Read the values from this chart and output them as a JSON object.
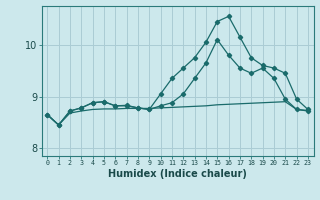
{
  "xlabel": "Humidex (Indice chaleur)",
  "bg_color": "#cce8ec",
  "grid_color": "#aaccd4",
  "line_color": "#1a6b6b",
  "xlim": [
    -0.5,
    23.5
  ],
  "ylim": [
    7.85,
    10.75
  ],
  "xticks": [
    0,
    1,
    2,
    3,
    4,
    5,
    6,
    7,
    8,
    9,
    10,
    11,
    12,
    13,
    14,
    15,
    16,
    17,
    18,
    19,
    20,
    21,
    22,
    23
  ],
  "yticks": [
    8,
    9,
    10
  ],
  "line1_x": [
    0,
    1,
    2,
    3,
    4,
    5,
    6,
    7,
    8,
    9,
    10,
    11,
    12,
    13,
    14,
    15,
    16,
    17,
    18,
    19,
    20,
    21,
    22,
    23
  ],
  "line1_y": [
    8.65,
    8.45,
    8.72,
    8.78,
    8.88,
    8.9,
    8.82,
    8.83,
    8.78,
    8.75,
    9.05,
    9.35,
    9.55,
    9.75,
    10.05,
    10.45,
    10.55,
    10.15,
    9.75,
    9.6,
    9.55,
    9.45,
    8.95,
    8.75
  ],
  "line2_x": [
    0,
    1,
    2,
    3,
    4,
    5,
    6,
    7,
    8,
    9,
    10,
    11,
    12,
    13,
    14,
    15,
    16,
    17,
    18,
    19,
    20,
    21,
    22,
    23
  ],
  "line2_y": [
    8.65,
    8.45,
    8.68,
    8.72,
    8.75,
    8.76,
    8.76,
    8.77,
    8.77,
    8.77,
    8.78,
    8.79,
    8.8,
    8.81,
    8.82,
    8.84,
    8.85,
    8.86,
    8.87,
    8.88,
    8.89,
    8.9,
    8.75,
    8.73
  ],
  "line3_x": [
    0,
    1,
    2,
    3,
    4,
    5,
    6,
    7,
    8,
    9,
    10,
    11,
    12,
    13,
    14,
    15,
    16,
    17,
    18,
    19,
    20,
    21,
    22,
    23
  ],
  "line3_y": [
    8.65,
    8.45,
    8.72,
    8.78,
    8.88,
    8.9,
    8.82,
    8.82,
    8.78,
    8.75,
    8.82,
    8.88,
    9.05,
    9.35,
    9.65,
    10.1,
    9.8,
    9.55,
    9.45,
    9.55,
    9.35,
    8.95,
    8.75,
    8.72
  ]
}
